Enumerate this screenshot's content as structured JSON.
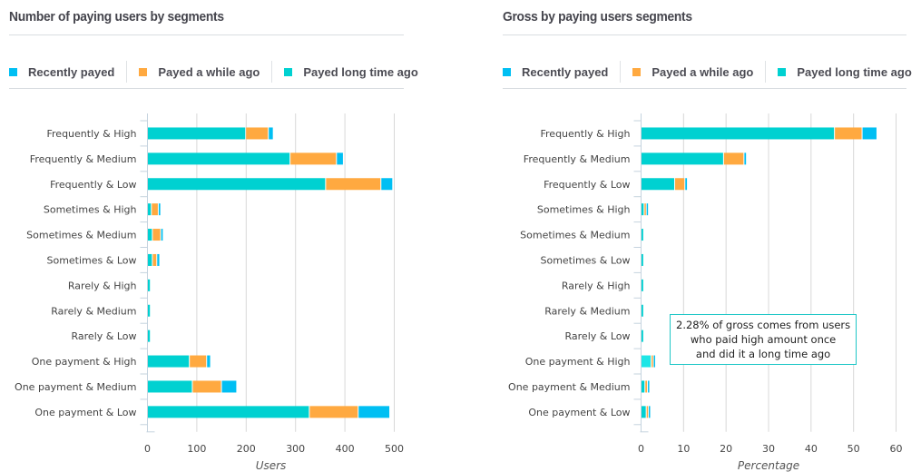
{
  "colors": {
    "recent": "#00bff3",
    "while": "#ffa940",
    "long": "#00d1d1",
    "long_highlight": "#1de6e6",
    "grid": "#d8d8d8",
    "axis": "#c5d3de"
  },
  "legend": [
    {
      "key": "recent",
      "label": "Recently payed"
    },
    {
      "key": "while",
      "label": "Payed a while ago"
    },
    {
      "key": "long",
      "label": "Payed long time ago"
    }
  ],
  "tooltip": {
    "lines": [
      "2.28% of gross comes from users",
      "who paid high amount once",
      "and did it a long time ago"
    ]
  },
  "chart_data": [
    {
      "type": "bar",
      "orientation": "horizontal",
      "stacked": true,
      "title": "Number of paying users by segments",
      "xlabel": "Users",
      "ylabel": "",
      "xlim": [
        0,
        520
      ],
      "xticks": [
        0,
        100,
        200,
        300,
        400,
        500
      ],
      "grid": true,
      "legend_position": "top-left",
      "categories": [
        "Frequently & High",
        "Frequently & Medium",
        "Frequently & Low",
        "Sometimes & High",
        "Sometimes & Medium",
        "Sometimes & Low",
        "Rarely & High",
        "Rarely & Medium",
        "Rarely & Low",
        "One payment & High",
        "One payment & Medium",
        "One payment & Low"
      ],
      "series": [
        {
          "name": "Payed long time ago",
          "key": "long",
          "values": [
            198,
            288,
            360,
            7,
            9,
            9,
            5,
            5,
            5,
            84,
            90,
            327
          ]
        },
        {
          "name": "Payed a while ago",
          "key": "while",
          "values": [
            46,
            94,
            112,
            14,
            17,
            9,
            0,
            0,
            0,
            35,
            59,
            99
          ]
        },
        {
          "name": "Recently payed",
          "key": "recent",
          "values": [
            10,
            14,
            24,
            5,
            5,
            6,
            0,
            0,
            0,
            8,
            31,
            64
          ]
        }
      ]
    },
    {
      "type": "bar",
      "orientation": "horizontal",
      "stacked": true,
      "title": "Gross by paying users segments",
      "xlabel": "Percentage",
      "ylabel": "",
      "xlim": [
        0,
        60
      ],
      "xticks": [
        0,
        10,
        20,
        30,
        40,
        50,
        60
      ],
      "grid": true,
      "legend_position": "top-left",
      "highlighted": {
        "series": "long",
        "category_index": 9,
        "value": 2.28
      },
      "categories": [
        "Frequently & High",
        "Frequently & Medium",
        "Frequently & Low",
        "Sometimes & High",
        "Sometimes & Medium",
        "Sometimes & Low",
        "Rarely & High",
        "Rarely & Medium",
        "Rarely & Low",
        "One payment & High",
        "One payment & Medium",
        "One payment & Low"
      ],
      "series": [
        {
          "name": "Payed long time ago",
          "key": "long",
          "values": [
            45.4,
            19.3,
            7.8,
            0.6,
            0.5,
            0.5,
            0.5,
            0.5,
            0.5,
            2.28,
            0.8,
            1.1
          ]
        },
        {
          "name": "Payed a while ago",
          "key": "while",
          "values": [
            6.5,
            4.8,
            2.4,
            0.5,
            0,
            0,
            0,
            0,
            0,
            0.5,
            0.6,
            0.5
          ]
        },
        {
          "name": "Recently payed",
          "key": "recent",
          "values": [
            3.5,
            0.6,
            0.6,
            0.4,
            0,
            0,
            0,
            0,
            0,
            0.5,
            0.5,
            0.4
          ]
        }
      ]
    }
  ]
}
